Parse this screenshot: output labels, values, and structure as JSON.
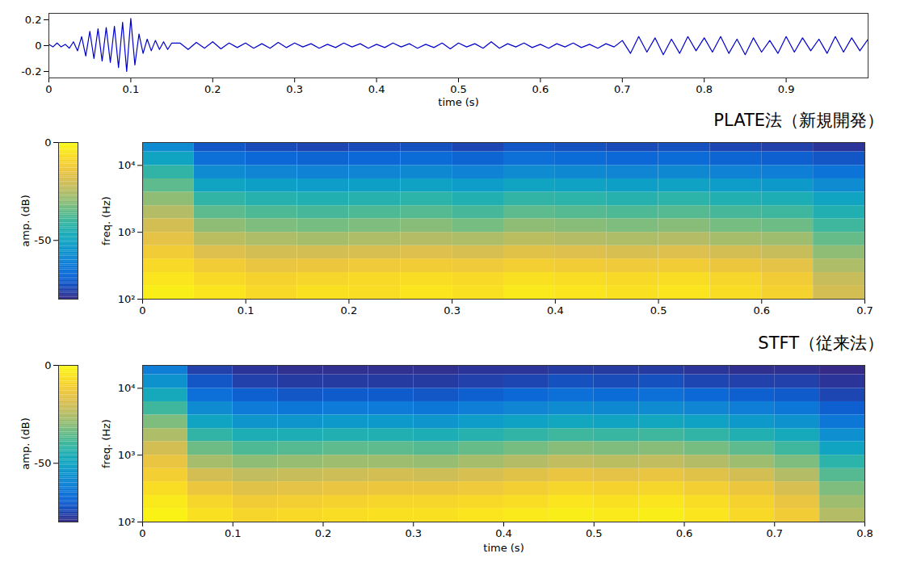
{
  "chart_data": [
    {
      "type": "line",
      "xlabel": "time (s)",
      "x": [
        0,
        0.005,
        0.01,
        0.015,
        0.02,
        0.025,
        0.03,
        0.035,
        0.04,
        0.045,
        0.05,
        0.055,
        0.06,
        0.065,
        0.07,
        0.075,
        0.08,
        0.085,
        0.09,
        0.095,
        0.1,
        0.105,
        0.11,
        0.115,
        0.12,
        0.125,
        0.13,
        0.135,
        0.14,
        0.145,
        0.15,
        0.16,
        0.17,
        0.18,
        0.19,
        0.2,
        0.21,
        0.22,
        0.23,
        0.24,
        0.25,
        0.26,
        0.27,
        0.28,
        0.29,
        0.3,
        0.31,
        0.32,
        0.33,
        0.34,
        0.35,
        0.36,
        0.37,
        0.38,
        0.39,
        0.4,
        0.41,
        0.42,
        0.43,
        0.44,
        0.45,
        0.46,
        0.47,
        0.48,
        0.49,
        0.5,
        0.51,
        0.52,
        0.53,
        0.54,
        0.55,
        0.56,
        0.57,
        0.58,
        0.59,
        0.6,
        0.61,
        0.62,
        0.63,
        0.64,
        0.65,
        0.66,
        0.67,
        0.68,
        0.69,
        0.7,
        0.71,
        0.72,
        0.73,
        0.74,
        0.75,
        0.76,
        0.77,
        0.78,
        0.79,
        0.8,
        0.81,
        0.82,
        0.83,
        0.84,
        0.85,
        0.86,
        0.87,
        0.88,
        0.89,
        0.9,
        0.91,
        0.92,
        0.93,
        0.94,
        0.95,
        0.96,
        0.97,
        0.98,
        0.99,
        1.0
      ],
      "values": [
        0.01,
        -0.01,
        0.02,
        -0.01,
        0.01,
        -0.02,
        0.03,
        -0.04,
        0.07,
        -0.08,
        0.11,
        -0.1,
        0.13,
        -0.12,
        0.14,
        -0.13,
        0.15,
        -0.17,
        0.18,
        -0.2,
        0.21,
        -0.15,
        0.09,
        -0.06,
        0.05,
        -0.04,
        0.04,
        -0.03,
        0.03,
        -0.03,
        0.02,
        0.02,
        -0.03,
        0.025,
        -0.02,
        0.03,
        -0.025,
        0.02,
        -0.015,
        0.02,
        -0.02,
        0.015,
        -0.02,
        0.025,
        -0.015,
        0.02,
        -0.01,
        0.015,
        -0.02,
        0.01,
        -0.015,
        0.02,
        -0.01,
        0.015,
        -0.02,
        0.01,
        -0.015,
        0.02,
        -0.01,
        0.015,
        -0.02,
        0.01,
        -0.015,
        0.02,
        -0.025,
        0.02,
        -0.01,
        0.015,
        -0.02,
        0.03,
        -0.02,
        0.015,
        -0.01,
        0.02,
        -0.015,
        0.01,
        -0.02,
        0.015,
        -0.01,
        0.02,
        -0.015,
        0.01,
        -0.02,
        0.015,
        -0.01,
        0.04,
        -0.06,
        0.07,
        -0.05,
        0.06,
        -0.07,
        0.05,
        -0.06,
        0.07,
        -0.04,
        0.06,
        -0.05,
        0.07,
        -0.06,
        0.05,
        -0.07,
        0.06,
        -0.05,
        0.04,
        -0.06,
        0.07,
        -0.05,
        0.06,
        -0.04,
        0.05,
        -0.06,
        0.07,
        -0.05,
        0.06,
        -0.04,
        0.05
      ],
      "color": "#0000cc",
      "xlim": [
        0,
        1
      ],
      "xticks": [
        0,
        0.1,
        0.2,
        0.3,
        0.4,
        0.5,
        0.6,
        0.7,
        0.8,
        0.9
      ],
      "ylim": [
        -0.25,
        0.25
      ],
      "yticks": [
        -0.2,
        0,
        0.2
      ],
      "grid": false
    },
    {
      "type": "heatmap",
      "title": "PLATE法（新規開発）",
      "ylabel": "freq. (Hz)",
      "colorbar_label": "amp. (dB)",
      "log": "y",
      "xlim": [
        0,
        0.7
      ],
      "xticks": [
        0,
        0.1,
        0.2,
        0.3,
        0.4,
        0.5,
        0.6,
        0.7
      ],
      "ylim": [
        100,
        22000
      ],
      "yticks": [
        {
          "value": 100,
          "label": "10²"
        },
        {
          "value": 1000,
          "label": "10³"
        },
        {
          "value": 10000,
          "label": "10⁴"
        }
      ],
      "color_range": [
        -80,
        0
      ],
      "color_ticks": [
        -50,
        0
      ],
      "time_edges": [
        0,
        0.05,
        0.1,
        0.15,
        0.2,
        0.25,
        0.3,
        0.35,
        0.4,
        0.45,
        0.5,
        0.55,
        0.6,
        0.65,
        0.7
      ],
      "freq_edges": [
        100,
        160,
        250,
        400,
        630,
        1000,
        1600,
        2500,
        4000,
        6300,
        10000,
        16000,
        22000
      ],
      "cells": [
        [
          -3,
          -5,
          -8,
          -6,
          -7,
          -5,
          -6,
          -4,
          -5,
          -6,
          -5,
          -7,
          -10,
          -20
        ],
        [
          -5,
          -8,
          -10,
          -9,
          -8,
          -7,
          -8,
          -6,
          -7,
          -8,
          -7,
          -9,
          -12,
          -22
        ],
        [
          -8,
          -12,
          -15,
          -14,
          -13,
          -12,
          -13,
          -11,
          -12,
          -13,
          -12,
          -14,
          -16,
          -26
        ],
        [
          -12,
          -18,
          -20,
          -20,
          -19,
          -18,
          -19,
          -17,
          -18,
          -19,
          -18,
          -20,
          -22,
          -30
        ],
        [
          -16,
          -24,
          -26,
          -27,
          -26,
          -25,
          -26,
          -24,
          -25,
          -26,
          -25,
          -27,
          -28,
          -35
        ],
        [
          -20,
          -30,
          -32,
          -33,
          -32,
          -31,
          -33,
          -30,
          -31,
          -32,
          -31,
          -33,
          -34,
          -40
        ],
        [
          -25,
          -36,
          -38,
          -39,
          -38,
          -37,
          -39,
          -36,
          -37,
          -38,
          -37,
          -39,
          -40,
          -45
        ],
        [
          -30,
          -42,
          -44,
          -45,
          -44,
          -43,
          -45,
          -42,
          -43,
          -44,
          -43,
          -45,
          -46,
          -50
        ],
        [
          -36,
          -50,
          -52,
          -53,
          -52,
          -51,
          -53,
          -50,
          -51,
          -52,
          -51,
          -53,
          -54,
          -58
        ],
        [
          -42,
          -58,
          -60,
          -61,
          -60,
          -59,
          -61,
          -58,
          -59,
          -60,
          -59,
          -61,
          -62,
          -65
        ],
        [
          -50,
          -66,
          -68,
          -69,
          -68,
          -67,
          -69,
          -66,
          -67,
          -68,
          -67,
          -69,
          -70,
          -72
        ],
        [
          -58,
          -72,
          -74,
          -75,
          -74,
          -73,
          -75,
          -72,
          -73,
          -74,
          -73,
          -75,
          -76,
          -78
        ]
      ]
    },
    {
      "type": "heatmap",
      "title": "STFT（従来法）",
      "xlabel": "time (s)",
      "ylabel": "freq. (Hz)",
      "colorbar_label": "amp. (dB)",
      "log": "y",
      "xlim": [
        0,
        0.8
      ],
      "xticks": [
        0,
        0.1,
        0.2,
        0.3,
        0.4,
        0.5,
        0.6,
        0.7,
        0.8
      ],
      "ylim": [
        100,
        22000
      ],
      "yticks": [
        {
          "value": 100,
          "label": "10²"
        },
        {
          "value": 1000,
          "label": "10³"
        },
        {
          "value": 10000,
          "label": "10⁴"
        }
      ],
      "color_range": [
        -80,
        0
      ],
      "color_ticks": [
        -50,
        0
      ],
      "time_edges": [
        0,
        0.05,
        0.1,
        0.15,
        0.2,
        0.25,
        0.3,
        0.35,
        0.4,
        0.45,
        0.5,
        0.55,
        0.6,
        0.65,
        0.7,
        0.75,
        0.8
      ],
      "freq_edges": [
        100,
        160,
        250,
        400,
        630,
        1000,
        1600,
        2500,
        4000,
        6300,
        10000,
        16000,
        22000
      ],
      "cells": [
        [
          -2,
          -6,
          -9,
          -8,
          -7,
          -6,
          -6,
          -5,
          -4,
          -3,
          -4,
          -3,
          -5,
          -8,
          -12,
          -25
        ],
        [
          -4,
          -9,
          -12,
          -11,
          -10,
          -9,
          -9,
          -8,
          -7,
          -5,
          -6,
          -5,
          -7,
          -10,
          -15,
          -28
        ],
        [
          -7,
          -14,
          -17,
          -16,
          -15,
          -14,
          -14,
          -13,
          -11,
          -9,
          -10,
          -9,
          -11,
          -14,
          -19,
          -32
        ],
        [
          -11,
          -20,
          -23,
          -22,
          -21,
          -20,
          -21,
          -19,
          -17,
          -15,
          -16,
          -15,
          -17,
          -20,
          -25,
          -37
        ],
        [
          -15,
          -27,
          -30,
          -29,
          -28,
          -28,
          -29,
          -27,
          -25,
          -23,
          -24,
          -23,
          -25,
          -28,
          -32,
          -43
        ],
        [
          -20,
          -34,
          -38,
          -37,
          -36,
          -36,
          -37,
          -35,
          -33,
          -31,
          -32,
          -31,
          -33,
          -36,
          -40,
          -50
        ],
        [
          -26,
          -42,
          -46,
          -46,
          -45,
          -45,
          -46,
          -44,
          -42,
          -40,
          -41,
          -40,
          -42,
          -45,
          -48,
          -57
        ],
        [
          -32,
          -50,
          -55,
          -55,
          -54,
          -54,
          -55,
          -53,
          -51,
          -49,
          -50,
          -49,
          -51,
          -54,
          -56,
          -64
        ],
        [
          -40,
          -58,
          -63,
          -64,
          -63,
          -63,
          -64,
          -62,
          -60,
          -58,
          -59,
          -58,
          -60,
          -62,
          -64,
          -70
        ],
        [
          -48,
          -66,
          -70,
          -72,
          -71,
          -71,
          -72,
          -70,
          -68,
          -66,
          -67,
          -66,
          -68,
          -70,
          -71,
          -75
        ],
        [
          -56,
          -72,
          -76,
          -77,
          -77,
          -77,
          -77,
          -76,
          -75,
          -73,
          -74,
          -73,
          -75,
          -76,
          -76,
          -78
        ],
        [
          -62,
          -76,
          -78,
          -79,
          -79,
          -79,
          -79,
          -78,
          -78,
          -77,
          -77,
          -77,
          -78,
          -79,
          -79,
          -80
        ]
      ]
    }
  ]
}
